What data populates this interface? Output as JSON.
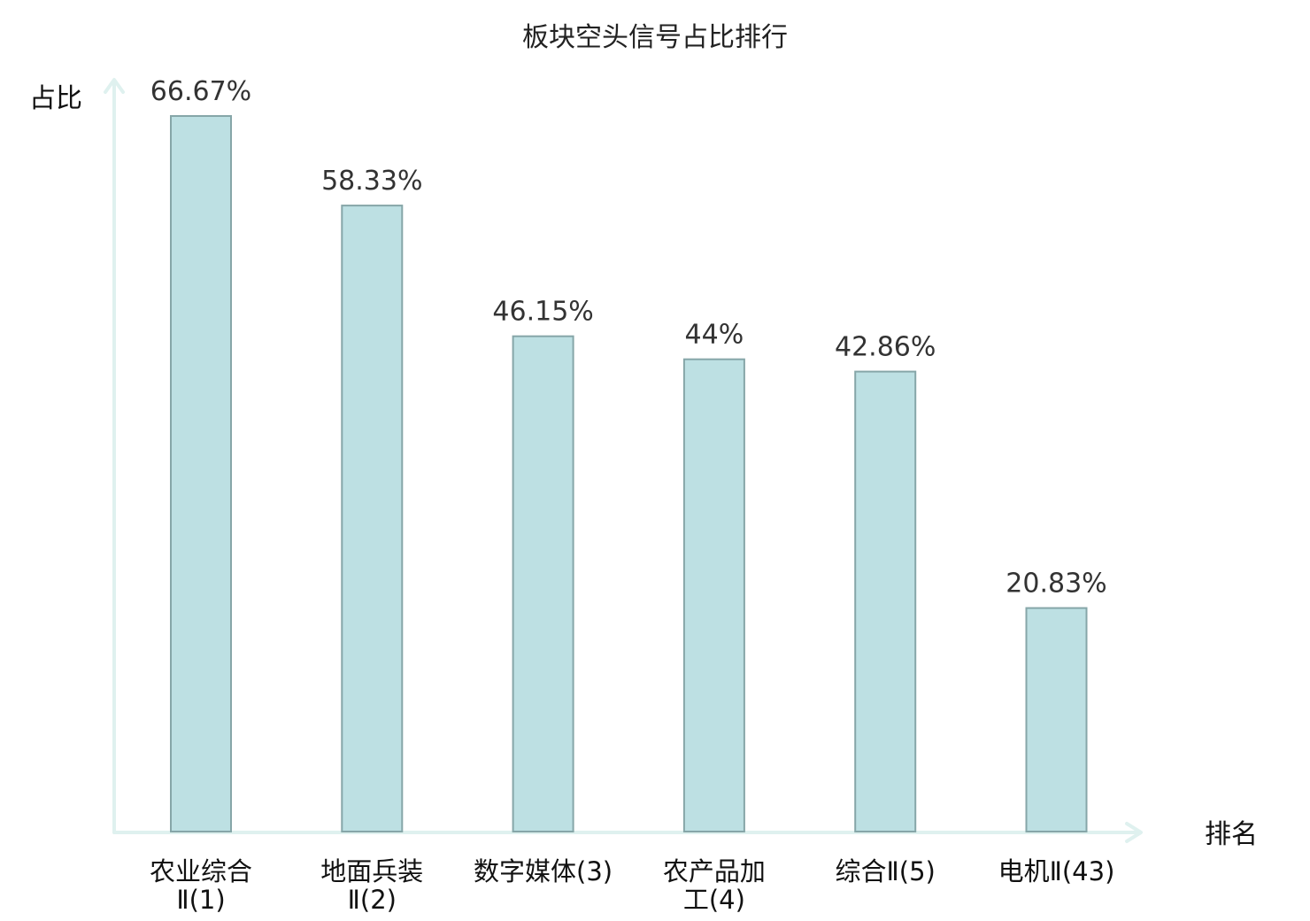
{
  "chart_data": {
    "type": "bar",
    "title": "板块空头信号占比排行",
    "ylabel": "占比",
    "xlabel": "排名",
    "ylim": [
      0,
      66.67
    ],
    "grid": false,
    "legend": "none",
    "categories": [
      {
        "lines": [
          "农业综合",
          "Ⅱ(1)"
        ],
        "highlight": false
      },
      {
        "lines": [
          "地面兵装",
          "Ⅱ(2)"
        ],
        "highlight": false
      },
      {
        "lines": [
          "数字媒体(3)"
        ],
        "highlight": false
      },
      {
        "lines": [
          "农产品加",
          "工(4)"
        ],
        "highlight": false
      },
      {
        "lines": [
          "综合Ⅱ(5)"
        ],
        "highlight": false
      },
      {
        "lines": [
          "电机Ⅱ(43)"
        ],
        "highlight": true
      }
    ],
    "values": [
      66.67,
      58.33,
      46.15,
      44,
      42.86,
      20.83
    ],
    "value_labels": [
      "66.67%",
      "58.33%",
      "46.15%",
      "44%",
      "42.86%",
      "20.83%"
    ]
  },
  "colors": {
    "bar_fill": "#bde0e3",
    "bar_stroke": "#86a6a8",
    "axis": "#dff1ef",
    "highlight_text": "#e8191f",
    "text": "#111111",
    "value_text": "#333333"
  }
}
